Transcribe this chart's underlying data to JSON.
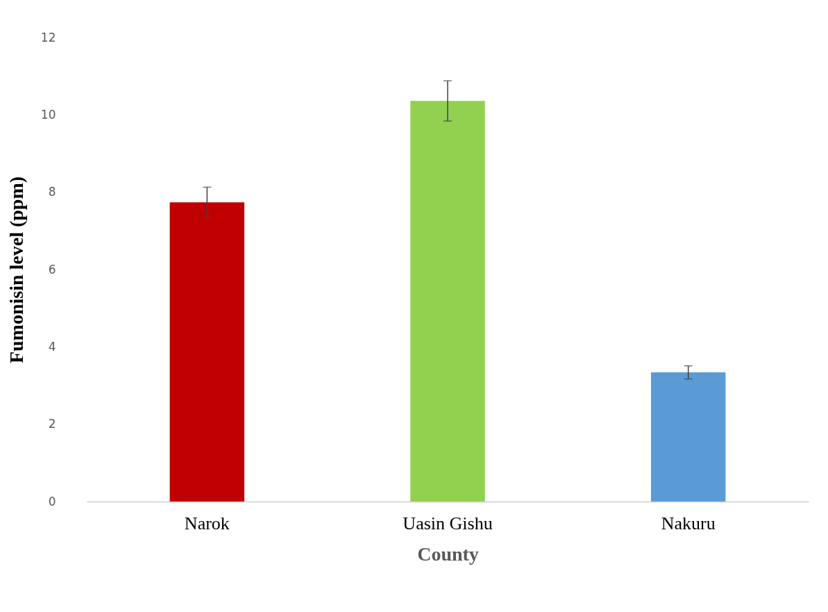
{
  "chart_data": {
    "type": "bar",
    "xlabel": "County",
    "ylabel": "Fumonisin level (ppm)",
    "categories": [
      "Narok",
      "Uasin Gishu",
      "Nakuru"
    ],
    "values": [
      7.74,
      10.36,
      3.34
    ],
    "colors": [
      "#c00000",
      "#92d050",
      "#5b9bd5"
    ],
    "errors": [
      0.39,
      0.52,
      0.17
    ],
    "ylim": [
      0,
      12
    ],
    "yticks": [
      0,
      2,
      4,
      6,
      8,
      10,
      12
    ],
    "grid": false,
    "legend": false
  }
}
